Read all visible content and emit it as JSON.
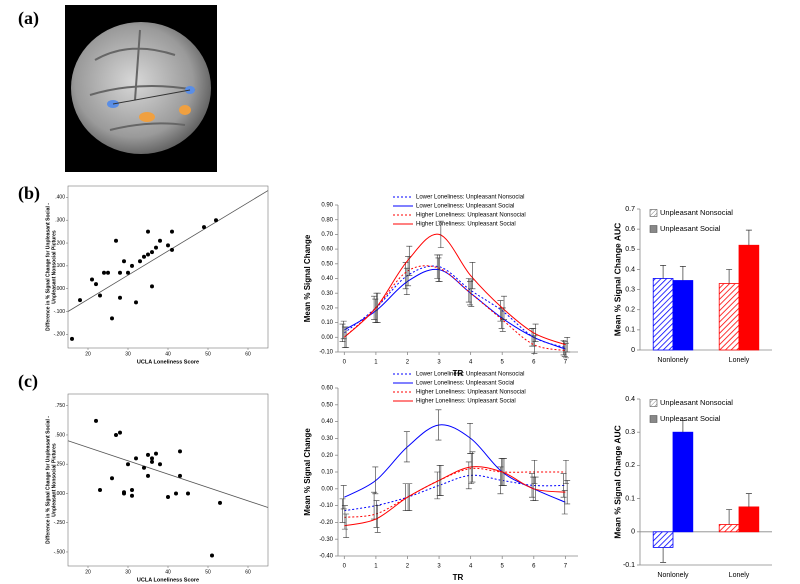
{
  "panel_labels": [
    "(a)",
    "(b)",
    "(c)"
  ],
  "chart_data": [
    {
      "type": "scatter",
      "xlabel": "UCLA Loneliness Score",
      "ylabel": [
        "Difference in % Signal Change for Unpleasant Social -",
        "Unpleasant Nonsocial Pictures"
      ],
      "xlim": [
        15,
        65
      ],
      "xticks": [
        20,
        30,
        40,
        50,
        60
      ],
      "ylim": [
        -0.26,
        0.45
      ],
      "yticks": [
        {
          "value": -0.2,
          "label": "-.200"
        },
        {
          "value": -0.1,
          "label": "-.100"
        },
        {
          "value": 0,
          "label": ".000"
        },
        {
          "value": 0.1,
          "label": ".100"
        },
        {
          "value": 0.2,
          "label": ".200"
        },
        {
          "value": 0.3,
          "label": ".300"
        },
        {
          "value": 0.4,
          "label": ".400"
        }
      ],
      "x": [
        16,
        18,
        21,
        22,
        23,
        24,
        25,
        26,
        27,
        28,
        28,
        29,
        30,
        31,
        32,
        33,
        34,
        35,
        35,
        36,
        36,
        37,
        38,
        40,
        41,
        41,
        49,
        52
      ],
      "values": [
        -0.22,
        -0.05,
        0.04,
        0.02,
        -0.03,
        0.07,
        0.07,
        -0.13,
        0.21,
        0.07,
        -0.04,
        0.12,
        0.07,
        0.1,
        -0.06,
        0.12,
        0.14,
        0.25,
        0.15,
        0.16,
        0.01,
        0.18,
        0.21,
        0.19,
        0.25,
        0.17,
        0.27,
        0.3
      ],
      "fit_x": [
        15,
        65
      ],
      "fit_y": [
        -0.1,
        0.43
      ]
    },
    {
      "type": "line",
      "xlabel": "TR",
      "ylabel": "Mean % Signal Change",
      "x": [
        0,
        1,
        2,
        3,
        4,
        5,
        6,
        7
      ],
      "xlim": [
        -0.2,
        7.4
      ],
      "xticks": [
        0,
        1,
        2,
        3,
        4,
        5,
        6,
        7
      ],
      "ylim": [
        -0.1,
        0.9
      ],
      "yticks": [
        {
          "value": -0.1,
          "label": "-0.10"
        },
        {
          "value": 0,
          "label": "0.00"
        },
        {
          "value": 0.1,
          "label": "0.10"
        },
        {
          "value": 0.2,
          "label": "0.20"
        },
        {
          "value": 0.3,
          "label": "0.30"
        },
        {
          "value": 0.4,
          "label": "0.40"
        },
        {
          "value": 0.5,
          "label": "0.50"
        },
        {
          "value": 0.6,
          "label": "0.60"
        },
        {
          "value": 0.7,
          "label": "0.70"
        },
        {
          "value": 0.8,
          "label": "0.80"
        },
        {
          "value": 0.9,
          "label": "0.90"
        }
      ],
      "series": [
        {
          "name": "Lower Loneliness: Unpleasant Nonsocial",
          "color": "#0000ff",
          "dashed": true,
          "values": [
            0.03,
            0.2,
            0.42,
            0.48,
            0.32,
            0.18,
            0.0,
            -0.07
          ],
          "errors": [
            0.06,
            0.08,
            0.09,
            0.08,
            0.08,
            0.07,
            0.06,
            0.05
          ]
        },
        {
          "name": "Lower Loneliness: Unpleasant Social",
          "color": "#0000ff",
          "dashed": false,
          "values": [
            0.05,
            0.18,
            0.38,
            0.46,
            0.3,
            0.13,
            0.0,
            -0.08
          ],
          "errors": [
            0.06,
            0.08,
            0.09,
            0.08,
            0.08,
            0.07,
            0.06,
            0.05
          ]
        },
        {
          "name": "Higher Loneliness: Unpleasant Nonsocial",
          "color": "#ff0000",
          "dashed": true,
          "values": [
            0.0,
            0.2,
            0.45,
            0.47,
            0.3,
            0.12,
            -0.05,
            -0.09
          ],
          "errors": [
            0.07,
            0.1,
            0.1,
            0.09,
            0.09,
            0.08,
            0.06,
            0.05
          ]
        },
        {
          "name": "Higher Loneliness: Unpleasant Social",
          "color": "#ff0000",
          "dashed": false,
          "values": [
            0.0,
            0.2,
            0.52,
            0.7,
            0.42,
            0.2,
            0.03,
            -0.05
          ],
          "errors": [
            0.07,
            0.1,
            0.1,
            0.09,
            0.09,
            0.08,
            0.06,
            0.05
          ]
        }
      ]
    },
    {
      "type": "bar",
      "ylabel": "Mean % Signal Change AUC",
      "categories": [
        "Nonlonely",
        "Lonely"
      ],
      "colors": [
        "#0000ff",
        "#ff0000"
      ],
      "ylim": [
        0,
        0.7
      ],
      "yticks": [
        0,
        0.1,
        0.2,
        0.3,
        0.4,
        0.5,
        0.6,
        0.7
      ],
      "series": [
        {
          "name": "Unpleasant Nonsocial",
          "hatched": true,
          "values": [
            0.355,
            0.33
          ],
          "errors": [
            0.065,
            0.07
          ]
        },
        {
          "name": "Unpleasant Social",
          "hatched": false,
          "values": [
            0.345,
            0.52
          ],
          "errors": [
            0.07,
            0.075
          ]
        }
      ]
    },
    {
      "type": "scatter",
      "xlabel": "UCLA Loneliness Score",
      "ylabel": [
        "Difference in % Signal Change for Unpleasant Social -",
        "Unpleasant Nonsocial Pictures"
      ],
      "xlim": [
        15,
        65
      ],
      "xticks": [
        20,
        30,
        40,
        50,
        60
      ],
      "ylim": [
        -0.62,
        0.85
      ],
      "yticks": [
        {
          "value": -0.5,
          "label": "-.500"
        },
        {
          "value": -0.25,
          "label": "-.250"
        },
        {
          "value": 0,
          "label": ".000"
        },
        {
          "value": 0.25,
          "label": ".250"
        },
        {
          "value": 0.5,
          "label": ".500"
        },
        {
          "value": 0.75,
          "label": ".750"
        }
      ],
      "x": [
        22,
        23,
        26,
        27,
        28,
        29,
        29,
        30,
        31,
        31,
        32,
        34,
        35,
        35,
        36,
        36,
        37,
        38,
        40,
        42,
        43,
        43,
        45,
        51,
        53
      ],
      "values": [
        0.62,
        0.03,
        0.13,
        0.5,
        0.52,
        0.01,
        0.0,
        0.25,
        0.03,
        -0.02,
        0.3,
        0.22,
        0.33,
        0.15,
        0.3,
        0.27,
        0.34,
        0.25,
        -0.03,
        0.0,
        0.36,
        0.15,
        0.0,
        -0.53,
        -0.08
      ],
      "fit_x": [
        15,
        65
      ],
      "fit_y": [
        0.45,
        -0.12
      ]
    },
    {
      "type": "line",
      "xlabel": "TR",
      "ylabel": "Mean % Signal Change",
      "x": [
        0,
        1,
        2,
        3,
        4,
        5,
        6,
        7
      ],
      "xlim": [
        -0.2,
        7.4
      ],
      "xticks": [
        0,
        1,
        2,
        3,
        4,
        5,
        6,
        7
      ],
      "ylim": [
        -0.4,
        0.6
      ],
      "yticks": [
        {
          "value": -0.4,
          "label": "-0.40"
        },
        {
          "value": -0.3,
          "label": "-0.30"
        },
        {
          "value": -0.2,
          "label": "-0.20"
        },
        {
          "value": -0.1,
          "label": "-0.10"
        },
        {
          "value": 0,
          "label": "0.00"
        },
        {
          "value": 0.1,
          "label": "0.10"
        },
        {
          "value": 0.2,
          "label": "0.20"
        },
        {
          "value": 0.3,
          "label": "0.30"
        },
        {
          "value": 0.4,
          "label": "0.40"
        },
        {
          "value": 0.5,
          "label": "0.50"
        },
        {
          "value": 0.6,
          "label": "0.60"
        }
      ],
      "series": [
        {
          "name": "Lower Loneliness: Unpleasant Nonsocial",
          "color": "#0000ff",
          "dashed": true,
          "values": [
            -0.13,
            -0.1,
            -0.05,
            0.02,
            0.08,
            0.05,
            0.02,
            0.02
          ],
          "errors": [
            0.07,
            0.08,
            0.08,
            0.08,
            0.08,
            0.08,
            0.07,
            0.07
          ]
        },
        {
          "name": "Lower Loneliness: Unpleasant Social",
          "color": "#0000ff",
          "dashed": false,
          "values": [
            -0.05,
            0.05,
            0.25,
            0.38,
            0.3,
            0.1,
            0.0,
            -0.08
          ],
          "errors": [
            0.07,
            0.08,
            0.09,
            0.09,
            0.09,
            0.08,
            0.07,
            0.07
          ]
        },
        {
          "name": "Higher Loneliness: Unpleasant Nonsocial",
          "color": "#ff0000",
          "dashed": true,
          "values": [
            -0.17,
            -0.15,
            -0.05,
            0.05,
            0.12,
            0.1,
            0.1,
            0.1
          ],
          "errors": [
            0.07,
            0.08,
            0.08,
            0.09,
            0.09,
            0.08,
            0.07,
            0.07
          ]
        },
        {
          "name": "Higher Loneliness: Unpleasant Social",
          "color": "#ff0000",
          "dashed": false,
          "values": [
            -0.22,
            -0.18,
            -0.05,
            0.05,
            0.13,
            0.1,
            0.0,
            -0.02
          ],
          "errors": [
            0.07,
            0.08,
            0.08,
            0.09,
            0.09,
            0.08,
            0.07,
            0.07
          ]
        }
      ]
    },
    {
      "type": "bar",
      "ylabel": "Mean % Signal Change AUC",
      "categories": [
        "Nonlonely",
        "Lonely"
      ],
      "colors": [
        "#0000ff",
        "#ff0000"
      ],
      "ylim": [
        -0.1,
        0.4
      ],
      "yticks": [
        -0.1,
        0,
        0.1,
        0.2,
        0.3,
        0.4
      ],
      "series": [
        {
          "name": "Unpleasant Nonsocial",
          "hatched": true,
          "values": [
            -0.047,
            0.022
          ],
          "errors": [
            0.045,
            0.045
          ]
        },
        {
          "name": "Unpleasant Social",
          "hatched": false,
          "values": [
            0.3,
            0.075
          ],
          "errors": [
            0.035,
            0.04
          ]
        }
      ]
    }
  ]
}
